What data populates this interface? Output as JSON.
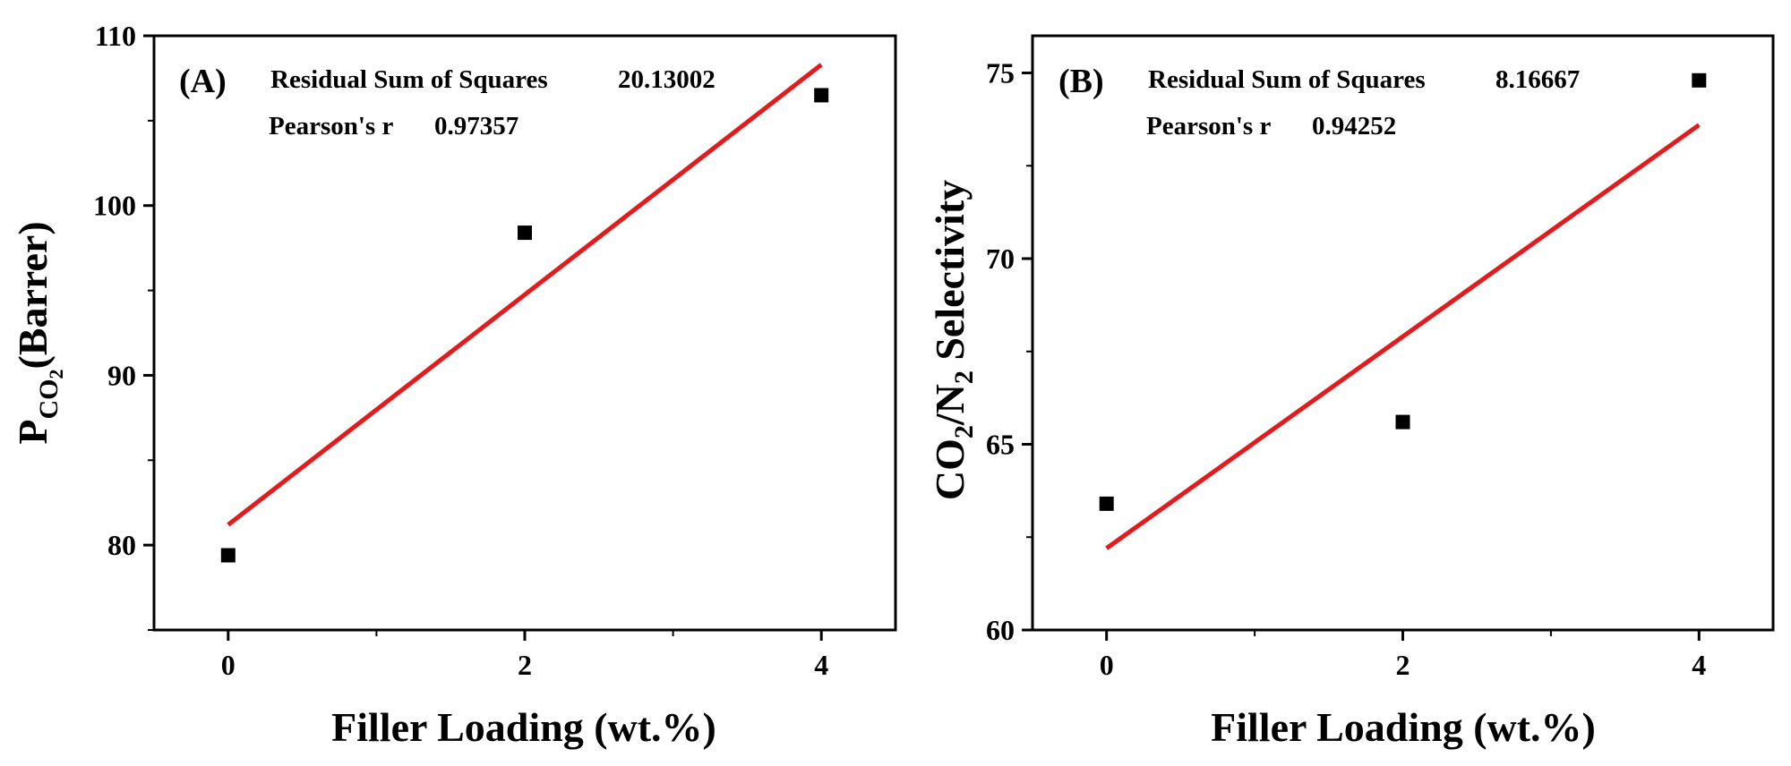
{
  "colors": {
    "fit_line": "#e41a1c",
    "marker": "#000000",
    "axis": "#000000"
  },
  "chart_data": [
    {
      "type": "scatter",
      "panel_label": "(A)",
      "x": [
        0,
        2,
        4
      ],
      "y": [
        79.4,
        98.4,
        106.5
      ],
      "fit_line": {
        "x": [
          0,
          4
        ],
        "y": [
          81.2,
          108.3
        ]
      },
      "xlabel": "Filler Loading (wt.%)",
      "ylabel": {
        "main": "P",
        "sub1": "CO",
        "sub2": "2",
        "rest": "(Barrer)"
      },
      "xlim": [
        -0.5,
        4.5
      ],
      "ylim": [
        75,
        110
      ],
      "xticks": [
        0,
        2,
        4
      ],
      "yticks": [
        80,
        90,
        100,
        110
      ],
      "stats": {
        "rss_label": "Residual Sum of Squares",
        "rss_value": "20.13002",
        "pearson_label": "Pearson's r",
        "pearson_value": "0.97357"
      },
      "grid": false
    },
    {
      "type": "scatter",
      "panel_label": "(B)",
      "x": [
        0,
        2,
        4
      ],
      "y": [
        63.4,
        65.6,
        74.8
      ],
      "fit_line": {
        "x": [
          0,
          4
        ],
        "y": [
          62.2,
          73.6
        ]
      },
      "xlabel": "Filler Loading (wt.%)",
      "ylabel": {
        "a": "CO",
        "a_sub": "2",
        "b": "/N",
        "b_sub": "2",
        "c": " Selectivity"
      },
      "xlim": [
        -0.5,
        4.5
      ],
      "ylim": [
        60,
        76
      ],
      "xticks": [
        0,
        2,
        4
      ],
      "yticks": [
        60,
        65,
        70,
        75
      ],
      "stats": {
        "rss_label": "Residual Sum of Squares",
        "rss_value": "8.16667",
        "pearson_label": "Pearson's r",
        "pearson_value": "0.94252"
      },
      "grid": false
    }
  ]
}
